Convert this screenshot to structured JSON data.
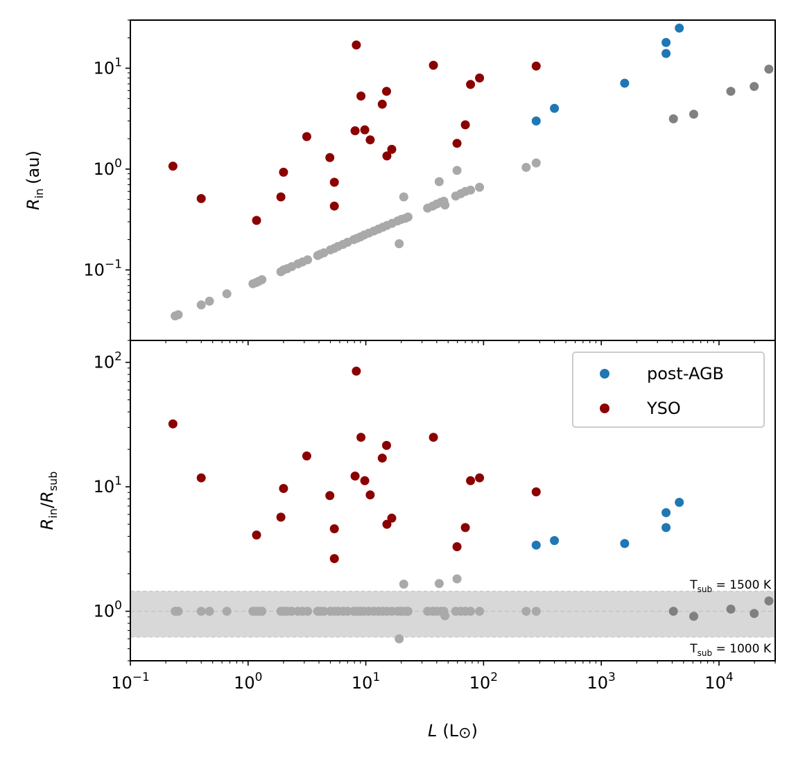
{
  "figure": {
    "xlabel_main": "L",
    "xlabel_unit": "(L",
    "xlabel_unit_close": ")",
    "top_ylabel_main": "R",
    "top_ylabel_sub": "in",
    "top_ylabel_unit": "(au)",
    "bottom_ylabel_num": "R",
    "bottom_ylabel_num_sub": "in",
    "bottom_ylabel_slash": "/",
    "bottom_ylabel_den": "R",
    "bottom_ylabel_den_sub": "sub",
    "band_upper_label": "T",
    "band_upper_label_sub": "sub",
    "band_upper_label_value": " = 1500 K",
    "band_lower_label": "T",
    "band_lower_label_sub": "sub",
    "band_lower_label_value": " = 1000 K",
    "legend": [
      {
        "label": "post-AGB",
        "color": "#1f77b4"
      },
      {
        "label": "YSO",
        "color": "#8b0000"
      }
    ]
  },
  "chart_data": [
    {
      "type": "scatter",
      "panel": "top",
      "xscale": "log",
      "yscale": "log",
      "xlim": [
        0.1,
        30000
      ],
      "ylim": [
        0.02,
        30
      ],
      "x_ticks": [
        0.1,
        1,
        10,
        100,
        1000,
        10000
      ],
      "y_ticks": [
        0.1,
        1,
        10
      ],
      "y_tick_labels": [
        "10",
        "10",
        "10"
      ],
      "y_tick_exponents": [
        "−1",
        "0",
        "1"
      ],
      "series": [
        {
          "name": "post-AGB",
          "color": "#1f77b4",
          "points": [
            [
              280,
              3.0
            ],
            [
              400,
              4.0
            ],
            [
              1580,
              7.1
            ],
            [
              3550,
              14.0
            ],
            [
              3550,
              18.0
            ],
            [
              4600,
              25.0
            ]
          ]
        },
        {
          "name": "YSO",
          "color": "#8b0000",
          "points": [
            [
              0.23,
              1.07
            ],
            [
              0.4,
              0.51
            ],
            [
              1.18,
              0.31
            ],
            [
              1.9,
              0.53
            ],
            [
              2.0,
              0.93
            ],
            [
              3.15,
              2.1
            ],
            [
              4.95,
              1.3
            ],
            [
              5.4,
              0.74
            ],
            [
              5.4,
              0.43
            ],
            [
              8.1,
              2.4
            ],
            [
              8.3,
              17.0
            ],
            [
              9.1,
              5.3
            ],
            [
              9.8,
              2.45
            ],
            [
              10.9,
              1.95
            ],
            [
              13.8,
              4.4
            ],
            [
              15.0,
              5.9
            ],
            [
              15.1,
              1.35
            ],
            [
              16.6,
              1.57
            ],
            [
              37.5,
              10.7
            ],
            [
              59.5,
              1.8
            ],
            [
              70.0,
              2.75
            ],
            [
              77.5,
              6.9
            ],
            [
              92.5,
              8.0
            ],
            [
              280,
              10.5
            ]
          ]
        },
        {
          "name": "",
          "color": "#a9a9a9",
          "points": [
            [
              0.24,
              0.035
            ],
            [
              0.255,
              0.036
            ],
            [
              0.4,
              0.045
            ],
            [
              0.47,
              0.049
            ],
            [
              0.66,
              0.058
            ],
            [
              1.1,
              0.073
            ],
            [
              1.17,
              0.075
            ],
            [
              1.23,
              0.077
            ],
            [
              1.31,
              0.08
            ],
            [
              1.9,
              0.096
            ],
            [
              2.0,
              0.1
            ],
            [
              2.15,
              0.103
            ],
            [
              2.35,
              0.108
            ],
            [
              2.65,
              0.115
            ],
            [
              2.9,
              0.12
            ],
            [
              3.2,
              0.126
            ],
            [
              3.9,
              0.139
            ],
            [
              4.1,
              0.143
            ],
            [
              4.4,
              0.148
            ],
            [
              5.0,
              0.158
            ],
            [
              5.4,
              0.164
            ],
            [
              5.8,
              0.171
            ],
            [
              6.4,
              0.179
            ],
            [
              7.0,
              0.188
            ],
            [
              7.9,
              0.2
            ],
            [
              8.4,
              0.206
            ],
            [
              9.0,
              0.213
            ],
            [
              9.7,
              0.222
            ],
            [
              10.6,
              0.232
            ],
            [
              11.7,
              0.243
            ],
            [
              12.8,
              0.254
            ],
            [
              13.9,
              0.265
            ],
            [
              15.1,
              0.276
            ],
            [
              16.7,
              0.29
            ],
            [
              18.6,
              0.306
            ],
            [
              19.2,
              0.182
            ],
            [
              20.0,
              0.317
            ],
            [
              21.0,
              0.53
            ],
            [
              21.6,
              0.325
            ],
            [
              22.8,
              0.335
            ],
            [
              33.5,
              0.41
            ],
            [
              37.0,
              0.43
            ],
            [
              40.0,
              0.45
            ],
            [
              42.0,
              0.75
            ],
            [
              43.5,
              0.47
            ],
            [
              46.0,
              0.48
            ],
            [
              47.0,
              0.44
            ],
            [
              58.0,
              0.54
            ],
            [
              59.5,
              0.97
            ],
            [
              64.0,
              0.57
            ],
            [
              70.0,
              0.6
            ],
            [
              77.5,
              0.62
            ],
            [
              92.5,
              0.66
            ],
            [
              230,
              1.04
            ],
            [
              280,
              1.15
            ]
          ]
        },
        {
          "name": "",
          "color": "#808080",
          "points": [
            [
              4100,
              3.15
            ],
            [
              6100,
              3.5
            ],
            [
              12600,
              5.9
            ],
            [
              19900,
              6.6
            ],
            [
              26500,
              9.8
            ]
          ]
        }
      ]
    },
    {
      "type": "scatter",
      "panel": "bottom",
      "xscale": "log",
      "yscale": "log",
      "xlim": [
        0.1,
        30000
      ],
      "ylim": [
        0.4,
        150
      ],
      "x_ticks": [
        0.1,
        1,
        10,
        100,
        1000,
        10000
      ],
      "x_tick_labels": [
        "10",
        "10",
        "10",
        "10",
        "10",
        "10"
      ],
      "x_tick_exponents": [
        "−1",
        "0",
        "1",
        "2",
        "3",
        "4"
      ],
      "y_ticks": [
        1,
        10,
        100
      ],
      "y_tick_labels": [
        "10",
        "10",
        "10"
      ],
      "y_tick_exponents": [
        "0",
        "1",
        "2"
      ],
      "band": {
        "ymin": 0.62,
        "ymax": 1.45,
        "center": 1.0
      },
      "series": [
        {
          "name": "post-AGB",
          "color": "#1f77b4",
          "points": [
            [
              280,
              3.4
            ],
            [
              400,
              3.7
            ],
            [
              1580,
              3.5
            ],
            [
              3550,
              4.7
            ],
            [
              3550,
              6.2
            ],
            [
              4600,
              7.5
            ]
          ]
        },
        {
          "name": "YSO",
          "color": "#8b0000",
          "points": [
            [
              0.23,
              32.0
            ],
            [
              0.4,
              11.8
            ],
            [
              1.18,
              4.1
            ],
            [
              1.9,
              5.7
            ],
            [
              2.0,
              9.7
            ],
            [
              3.15,
              17.7
            ],
            [
              4.95,
              8.5
            ],
            [
              5.4,
              4.6
            ],
            [
              5.4,
              2.65
            ],
            [
              8.1,
              12.2
            ],
            [
              8.3,
              85.0
            ],
            [
              9.1,
              25.0
            ],
            [
              9.8,
              11.2
            ],
            [
              10.9,
              8.6
            ],
            [
              13.8,
              17.0
            ],
            [
              15.0,
              21.5
            ],
            [
              15.1,
              5.0
            ],
            [
              16.6,
              5.6
            ],
            [
              37.5,
              25.0
            ],
            [
              59.5,
              3.3
            ],
            [
              70.0,
              4.7
            ],
            [
              77.5,
              11.2
            ],
            [
              92.5,
              11.8
            ],
            [
              280,
              9.1
            ]
          ]
        },
        {
          "name": "",
          "color": "#a9a9a9",
          "points": [
            [
              0.24,
              1.0
            ],
            [
              0.255,
              1.0
            ],
            [
              0.4,
              1.0
            ],
            [
              0.47,
              1.0
            ],
            [
              0.66,
              1.0
            ],
            [
              1.1,
              1.0
            ],
            [
              1.17,
              1.0
            ],
            [
              1.23,
              1.0
            ],
            [
              1.31,
              1.0
            ],
            [
              1.9,
              1.0
            ],
            [
              2.0,
              1.0
            ],
            [
              2.15,
              1.0
            ],
            [
              2.35,
              1.0
            ],
            [
              2.65,
              1.0
            ],
            [
              2.9,
              1.0
            ],
            [
              3.2,
              1.0
            ],
            [
              3.9,
              1.0
            ],
            [
              4.1,
              1.0
            ],
            [
              4.4,
              1.0
            ],
            [
              5.0,
              1.0
            ],
            [
              5.4,
              1.0
            ],
            [
              5.8,
              1.0
            ],
            [
              6.4,
              1.0
            ],
            [
              7.0,
              1.0
            ],
            [
              7.9,
              1.0
            ],
            [
              8.4,
              1.0
            ],
            [
              9.0,
              1.0
            ],
            [
              9.7,
              1.0
            ],
            [
              10.6,
              1.0
            ],
            [
              11.7,
              1.0
            ],
            [
              12.8,
              1.0
            ],
            [
              13.9,
              1.0
            ],
            [
              15.1,
              1.0
            ],
            [
              16.7,
              1.0
            ],
            [
              18.6,
              1.0
            ],
            [
              19.2,
              0.6
            ],
            [
              20.0,
              1.0
            ],
            [
              21.0,
              1.65
            ],
            [
              21.6,
              1.0
            ],
            [
              22.8,
              1.0
            ],
            [
              33.5,
              1.0
            ],
            [
              37.0,
              1.0
            ],
            [
              40.0,
              1.0
            ],
            [
              42.0,
              1.67
            ],
            [
              43.5,
              1.0
            ],
            [
              46.0,
              1.0
            ],
            [
              47.0,
              0.92
            ],
            [
              58.0,
              1.0
            ],
            [
              59.5,
              1.82
            ],
            [
              64.0,
              1.0
            ],
            [
              70.0,
              1.0
            ],
            [
              77.5,
              1.0
            ],
            [
              92.5,
              1.0
            ],
            [
              230,
              1.0
            ],
            [
              280,
              1.0
            ]
          ]
        },
        {
          "name": "",
          "color": "#808080",
          "points": [
            [
              4100,
              1.0
            ],
            [
              6100,
              0.91
            ],
            [
              12600,
              1.04
            ],
            [
              19900,
              0.96
            ],
            [
              26500,
              1.21
            ]
          ]
        }
      ]
    }
  ]
}
